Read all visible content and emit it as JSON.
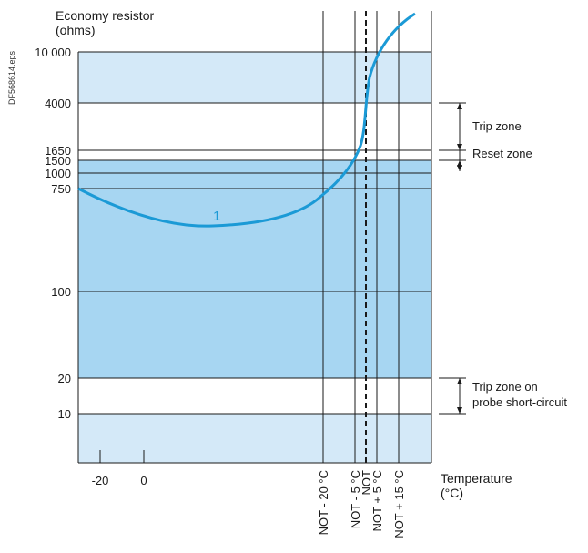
{
  "document_code": "DF568614.eps",
  "chart_data": {
    "type": "line",
    "ylabel": [
      "Economy resistor",
      "(ohms)"
    ],
    "xlabel": [
      "Temperature",
      "(°C)"
    ],
    "y_ticks": [
      "10 000",
      "4000",
      "1650",
      "1500",
      "1000",
      "750",
      "100",
      "20",
      "10"
    ],
    "x_ticks": [
      "-20",
      "0"
    ],
    "x_markers": [
      {
        "label": "NOT - 20 °C",
        "style": "solid"
      },
      {
        "label": "NOT - 5 °C",
        "style": "solid"
      },
      {
        "label": "NOT",
        "style": "dashed"
      },
      {
        "label": "NOT + 5 °C",
        "style": "solid"
      },
      {
        "label": "NOT + 15 °C",
        "style": "solid"
      }
    ],
    "bands": [
      {
        "from": "10000",
        "to": "above 10 000",
        "color": "#d4e9f8"
      },
      {
        "from": "20",
        "to": "1500",
        "color": "#a7d6f2"
      },
      {
        "from": "below 10",
        "to": "10",
        "color": "#d4e9f8"
      }
    ],
    "zones": [
      {
        "label": "Trip zone",
        "range": [
          "1650",
          "4000"
        ]
      },
      {
        "label": "Reset zone",
        "range": [
          "1500",
          "1650"
        ]
      },
      {
        "label": "Trip zone on probe short-circuit",
        "range": [
          "10",
          "20"
        ]
      }
    ],
    "curve": {
      "name": "1",
      "color": "#1b9ad6",
      "description_points": [
        {
          "x": "-30",
          "y": 750
        },
        {
          "x": "10",
          "y": 450
        },
        {
          "x": "NOT - 20 °C",
          "y": 700
        },
        {
          "x": "NOT - 5 °C",
          "y": 1000
        },
        {
          "x": "NOT",
          "y": 3000
        },
        {
          "x": "NOT + 15 °C",
          "y": 15000
        }
      ]
    }
  }
}
